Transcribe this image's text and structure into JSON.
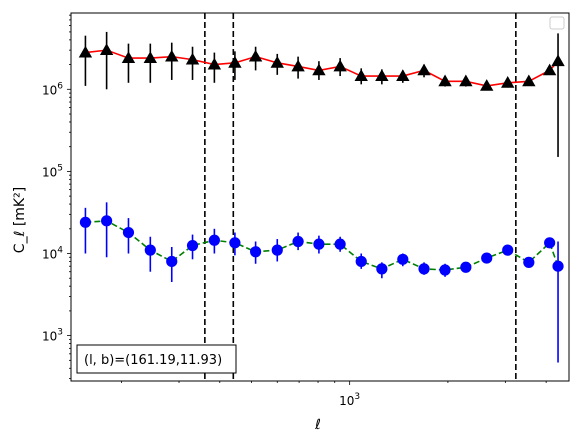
{
  "chart_data": {
    "type": "scatter",
    "xlabel": "ℓ",
    "ylabel": "C_ℓ  [mK²]",
    "xscale": "log",
    "yscale": "log",
    "xlim": [
      140,
      4700
    ],
    "ylim": [
      280,
      8500000
    ],
    "x_ticks": [
      {
        "value": 1000,
        "label": "10^3"
      }
    ],
    "y_ticks": [
      {
        "value": 1000,
        "label": "10^3"
      },
      {
        "value": 10000,
        "label": "10^4"
      },
      {
        "value": 100000,
        "label": "10^5"
      },
      {
        "value": 1000000,
        "label": "10^6"
      }
    ],
    "grid": false,
    "legend": {
      "placement": "top-right",
      "entries": []
    },
    "annotation": "(l, b)=(161.19,11.93)",
    "vlines": [
      360,
      440,
      3230
    ],
    "x": [
      155,
      180,
      210,
      245,
      285,
      330,
      385,
      445,
      515,
      600,
      695,
      805,
      935,
      1085,
      1255,
      1455,
      1690,
      1960,
      2270,
      2630,
      3050,
      3540,
      4100,
      4350
    ],
    "series": [
      {
        "marker": "triangle",
        "color": "#000000",
        "line_color": "#ff0000",
        "line_style": "solid",
        "y": [
          2800000,
          3000000,
          2400000,
          2400000,
          2500000,
          2300000,
          2000000,
          2100000,
          2500000,
          2100000,
          1900000,
          1700000,
          1900000,
          1450000,
          1450000,
          1450000,
          1700000,
          1250000,
          1250000,
          1100000,
          1200000,
          1250000,
          1700000,
          2200000
        ],
        "y_low": [
          1100000,
          1000000,
          1200000,
          1200000,
          1300000,
          1300000,
          1200000,
          1300000,
          1700000,
          1500000,
          1350000,
          1300000,
          1450000,
          1150000,
          1150000,
          1200000,
          1400000,
          1080000,
          1080000,
          1000000,
          1050000,
          1120000,
          1550000,
          150000
        ],
        "y_high": [
          4500000,
          5000000,
          3600000,
          3600000,
          3700000,
          3300000,
          2800000,
          2900000,
          3300000,
          2700000,
          2500000,
          2200000,
          2400000,
          1800000,
          1750000,
          1700000,
          2000000,
          1450000,
          1420000,
          1220000,
          1350000,
          1380000,
          1850000,
          4800000
        ]
      },
      {
        "marker": "circle",
        "color": "#0000ff",
        "line_color": "#008000",
        "line_style": "dashed",
        "y": [
          24000,
          25000,
          18000,
          11000,
          8000,
          12500,
          14500,
          13500,
          10500,
          11000,
          14000,
          13000,
          13000,
          8000,
          6500,
          8500,
          6500,
          6300,
          6800,
          8800,
          11000,
          7800,
          13500,
          7000
        ],
        "y_low": [
          10000,
          9000,
          10000,
          6000,
          4500,
          8500,
          10000,
          9500,
          7500,
          8000,
          11000,
          10000,
          10500,
          6500,
          5000,
          7000,
          5500,
          5200,
          6000,
          7800,
          9800,
          7000,
          12000,
          470
        ],
        "y_high": [
          36000,
          42000,
          27000,
          16000,
          12000,
          17000,
          20000,
          18000,
          14000,
          15000,
          18000,
          16500,
          16000,
          10000,
          7800,
          10000,
          7800,
          7500,
          7800,
          10000,
          12500,
          8800,
          15500,
          14000
        ]
      }
    ]
  }
}
